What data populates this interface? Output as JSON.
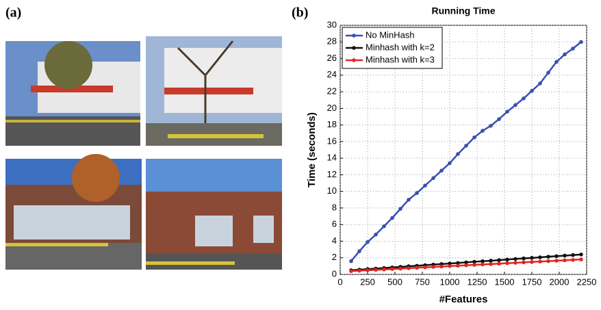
{
  "panel_labels": [
    "(a)",
    "(b)"
  ],
  "chart_data": {
    "type": "line",
    "title": "Running Time",
    "x_label": "#Features",
    "y_label": "Time (seconds)",
    "x": [
      100,
      175,
      250,
      325,
      400,
      475,
      550,
      625,
      700,
      775,
      850,
      925,
      1000,
      1075,
      1150,
      1225,
      1300,
      1375,
      1450,
      1525,
      1600,
      1675,
      1750,
      1825,
      1900,
      1975,
      2050,
      2125,
      2200
    ],
    "series": [
      {
        "name": "No MinHash",
        "color": "#3a4fb0",
        "values": [
          1.6,
          2.8,
          3.9,
          4.8,
          5.8,
          6.8,
          7.9,
          9.0,
          9.8,
          10.7,
          11.6,
          12.5,
          13.4,
          14.5,
          15.5,
          16.5,
          17.3,
          17.9,
          18.7,
          19.6,
          20.4,
          21.2,
          22.1,
          23.0,
          24.3,
          25.6,
          26.5,
          27.2,
          28.0
        ]
      },
      {
        "name": "Minhash with k=2",
        "color": "#111111",
        "values": [
          0.5,
          0.57,
          0.64,
          0.7,
          0.77,
          0.84,
          0.91,
          0.98,
          1.04,
          1.11,
          1.18,
          1.25,
          1.31,
          1.38,
          1.45,
          1.52,
          1.59,
          1.65,
          1.72,
          1.79,
          1.86,
          1.93,
          1.99,
          2.06,
          2.13,
          2.2,
          2.26,
          2.33,
          2.4
        ]
      },
      {
        "name": "Minhash with k=3",
        "color": "#e0261f",
        "values": [
          0.4,
          0.45,
          0.5,
          0.55,
          0.6,
          0.65,
          0.7,
          0.75,
          0.8,
          0.85,
          0.9,
          0.95,
          1.0,
          1.05,
          1.1,
          1.15,
          1.2,
          1.25,
          1.3,
          1.35,
          1.4,
          1.45,
          1.5,
          1.55,
          1.6,
          1.65,
          1.7,
          1.75,
          1.8
        ]
      }
    ],
    "xlim": [
      0,
      2250
    ],
    "xticks": [
      0,
      250,
      500,
      750,
      1000,
      1250,
      1500,
      1750,
      2000,
      2250
    ],
    "ylim": [
      0,
      30
    ],
    "yticks": [
      0,
      2,
      4,
      6,
      8,
      10,
      12,
      14,
      16,
      18,
      20,
      22,
      24,
      26,
      28,
      30
    ],
    "grid": true,
    "legend": "upper-left"
  }
}
